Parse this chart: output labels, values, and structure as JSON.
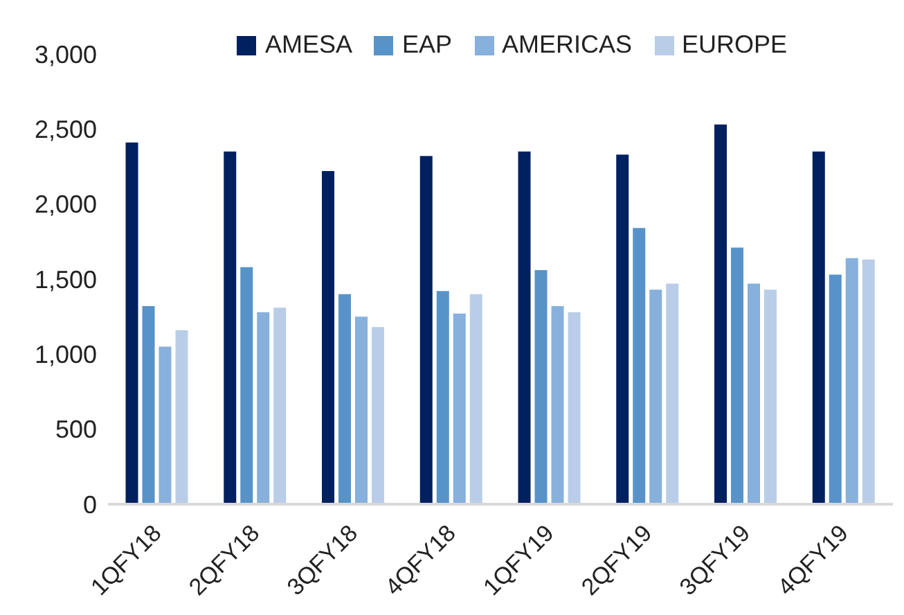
{
  "chart_data": {
    "type": "bar",
    "categories": [
      "1QFY18",
      "2QFY18",
      "3QFY18",
      "4QFY18",
      "1QFY19",
      "2QFY19",
      "3QFY19",
      "4QFY19"
    ],
    "series": [
      {
        "name": "AMESA",
        "color": "#002060",
        "values": [
          2410,
          2350,
          2220,
          2320,
          2350,
          2330,
          2530,
          2350
        ]
      },
      {
        "name": "EAP",
        "color": "#5793c9",
        "values": [
          1320,
          1580,
          1400,
          1420,
          1560,
          1840,
          1710,
          1530
        ]
      },
      {
        "name": "AMERICAS",
        "color": "#87b0dc",
        "values": [
          1050,
          1280,
          1250,
          1270,
          1320,
          1430,
          1470,
          1640
        ]
      },
      {
        "name": "EUROPE",
        "color": "#b9cde8",
        "values": [
          1160,
          1310,
          1180,
          1400,
          1280,
          1470,
          1430,
          1630
        ]
      }
    ],
    "ylim": [
      0,
      3000
    ],
    "yticks": [
      0,
      500,
      {
        "value": 1000,
        "label": "1,000"
      },
      {
        "value": 1500,
        "label": "1,500"
      },
      {
        "value": 2000,
        "label": "2,000"
      },
      {
        "value": 2500,
        "label": "2,500"
      },
      {
        "value": 3000,
        "label": "3,000"
      }
    ],
    "grid": false,
    "legend": "top"
  }
}
